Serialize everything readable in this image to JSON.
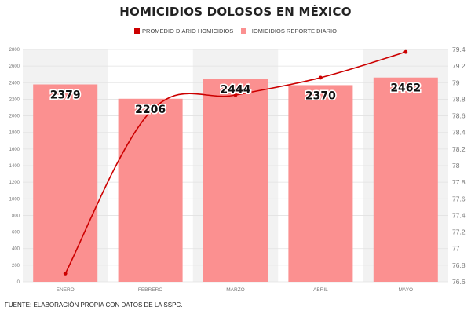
{
  "chart_data": {
    "type": "bar",
    "title": "HOMICIDIOS DOLOSOS EN MÉXICO",
    "source": "FUENTE: ELABORACIÓN PROPIA CON DATOS DE LA SSPC.",
    "categories": [
      "ENERO",
      "FEBRERO",
      "MARZO",
      "ABRIL",
      "MAYO"
    ],
    "series": [
      {
        "name": "HOMICIDIOS REPORTE DIARIO",
        "type": "bar",
        "axis": "left",
        "color": "#fb9090",
        "values": [
          2379,
          2206,
          2444,
          2370,
          2462
        ]
      },
      {
        "name": "PROMEDIO DIARIO HOMICIDIOS",
        "type": "line",
        "axis": "right",
        "color": "#cc0000",
        "values": [
          76.7,
          78.65,
          78.85,
          79.06,
          79.37
        ]
      }
    ],
    "y_left": {
      "min": 0,
      "max": 2800,
      "ticks": [
        "0",
        "200",
        "400",
        "600",
        "800",
        "1000",
        "1200",
        "1400",
        "1600",
        "1800",
        "2000",
        "2200",
        "2400",
        "2600",
        "2800"
      ]
    },
    "y_right": {
      "min": 76.6,
      "max": 79.4,
      "ticks": [
        "76.6",
        "76.8",
        "77",
        "77.2",
        "77.4",
        "77.6",
        "77.8",
        "78",
        "78.2",
        "78.4",
        "78.6",
        "78.8",
        "79",
        "79.2",
        "79.4"
      ]
    },
    "legend_position": "top-center",
    "grid": true
  }
}
